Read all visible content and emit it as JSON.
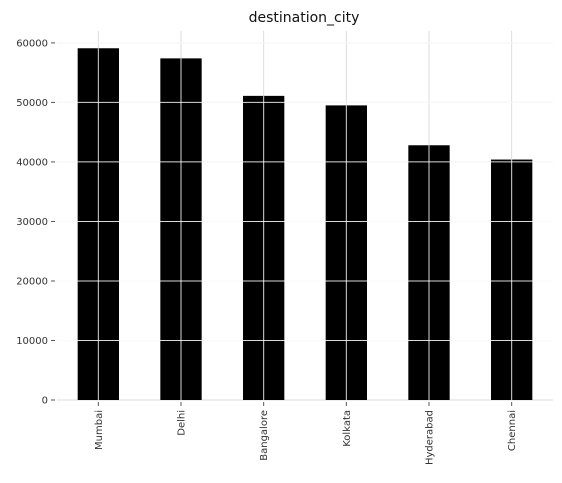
{
  "chart_data": {
    "type": "bar",
    "title": "destination_city",
    "categories": [
      "Mumbai",
      "Delhi",
      "Bangalore",
      "Kolkata",
      "Hyderabad",
      "Chennai"
    ],
    "values": [
      59100,
      57400,
      51100,
      49500,
      42800,
      40400
    ],
    "ylim": [
      0,
      62000
    ],
    "yticks": [
      0,
      10000,
      20000,
      30000,
      40000,
      50000,
      60000
    ],
    "grid": true,
    "bar_color": "#000000",
    "grid_color": "#dddddd"
  }
}
